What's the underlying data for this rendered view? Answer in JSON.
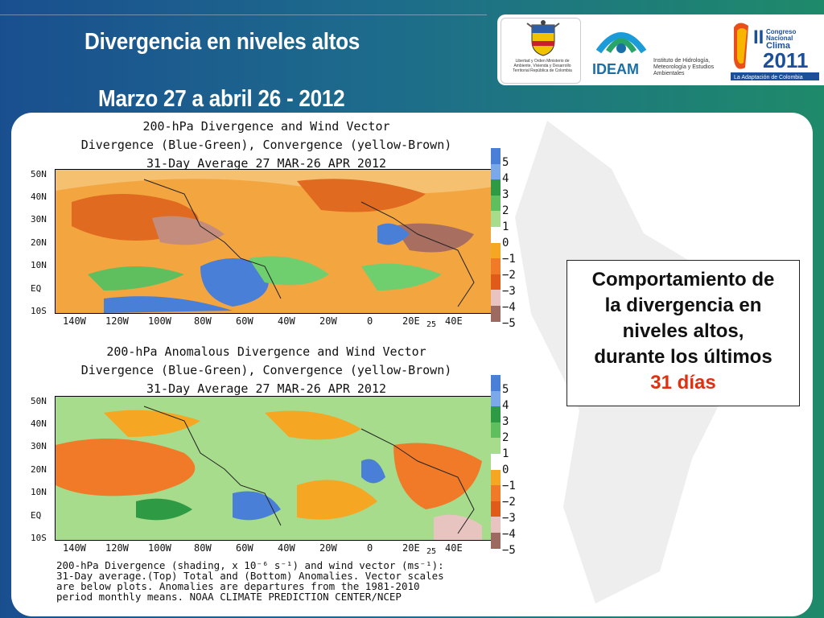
{
  "header": {
    "title_line1": "Divergencia en niveles altos",
    "title_line2": "Marzo 27 a abril 26 - 2012"
  },
  "logos": {
    "ministry_text": "Libertad y Orden Ministerio de Ambiente, Vivienda y Desarrollo Territorial República de Colombia",
    "ideam_name": "IDEAM",
    "ideam_subtitle": "Instituto de Hidrología, Meteorología y Estudios Ambientales",
    "congress_text": "II Congreso Nacional del Clima 2011",
    "congress_tagline": "La Adaptación de Colombia"
  },
  "figure": {
    "top": {
      "title1": "200-hPa Divergence and Wind Vector",
      "title2": "Divergence (Blue-Green), Convergence (yellow-Brown)",
      "title3": "31-Day Average 27 MAR-26 APR 2012"
    },
    "bottom": {
      "title1": "200-hPa Anomalous Divergence and Wind Vector",
      "title2": "Divergence (Blue-Green), Convergence (yellow-Brown)",
      "title3": "31-Day Average 27 MAR-26 APR 2012"
    },
    "lat_labels": [
      "50N",
      "40N",
      "30N",
      "20N",
      "10N",
      "EQ",
      "10S"
    ],
    "lon_labels": [
      "140W",
      "120W",
      "100W",
      "80W",
      "60W",
      "40W",
      "20W",
      "0",
      "20E",
      "40E"
    ],
    "vector_scale": "25",
    "colorbar_labels": [
      "5",
      "4",
      "3",
      "2",
      "1",
      "0",
      "−1",
      "−2",
      "−3",
      "−4",
      "−5"
    ],
    "colorbar_colors": [
      "#4a7fd8",
      "#7aa8e8",
      "#2e9a44",
      "#5fbf5f",
      "#a6dc8c",
      "#ffffff",
      "#f5a623",
      "#f07a28",
      "#e05a1a",
      "#e8c4c0",
      "#9c6a60"
    ],
    "caption": "200-hPa Divergence (shading, x 10⁻⁶ s⁻¹) and wind vector (ms⁻¹):\n31-Day average.(Top) Total and (Bottom) Anomalies. Vector scales\nare below plots. Anomalies are departures from the 1981-2010\nperiod monthly means. NOAA CLIMATE PREDICTION CENTER/NCEP"
  },
  "info_box": {
    "line1": "Comportamiento de",
    "line2": "la divergencia en",
    "line3": "niveles altos,",
    "line4": "durante los últimos",
    "line5": "31 días"
  },
  "colors": {
    "background_left": "#1a4f8f",
    "background_right": "#1f8a6a",
    "accent_red": "#e03010"
  }
}
